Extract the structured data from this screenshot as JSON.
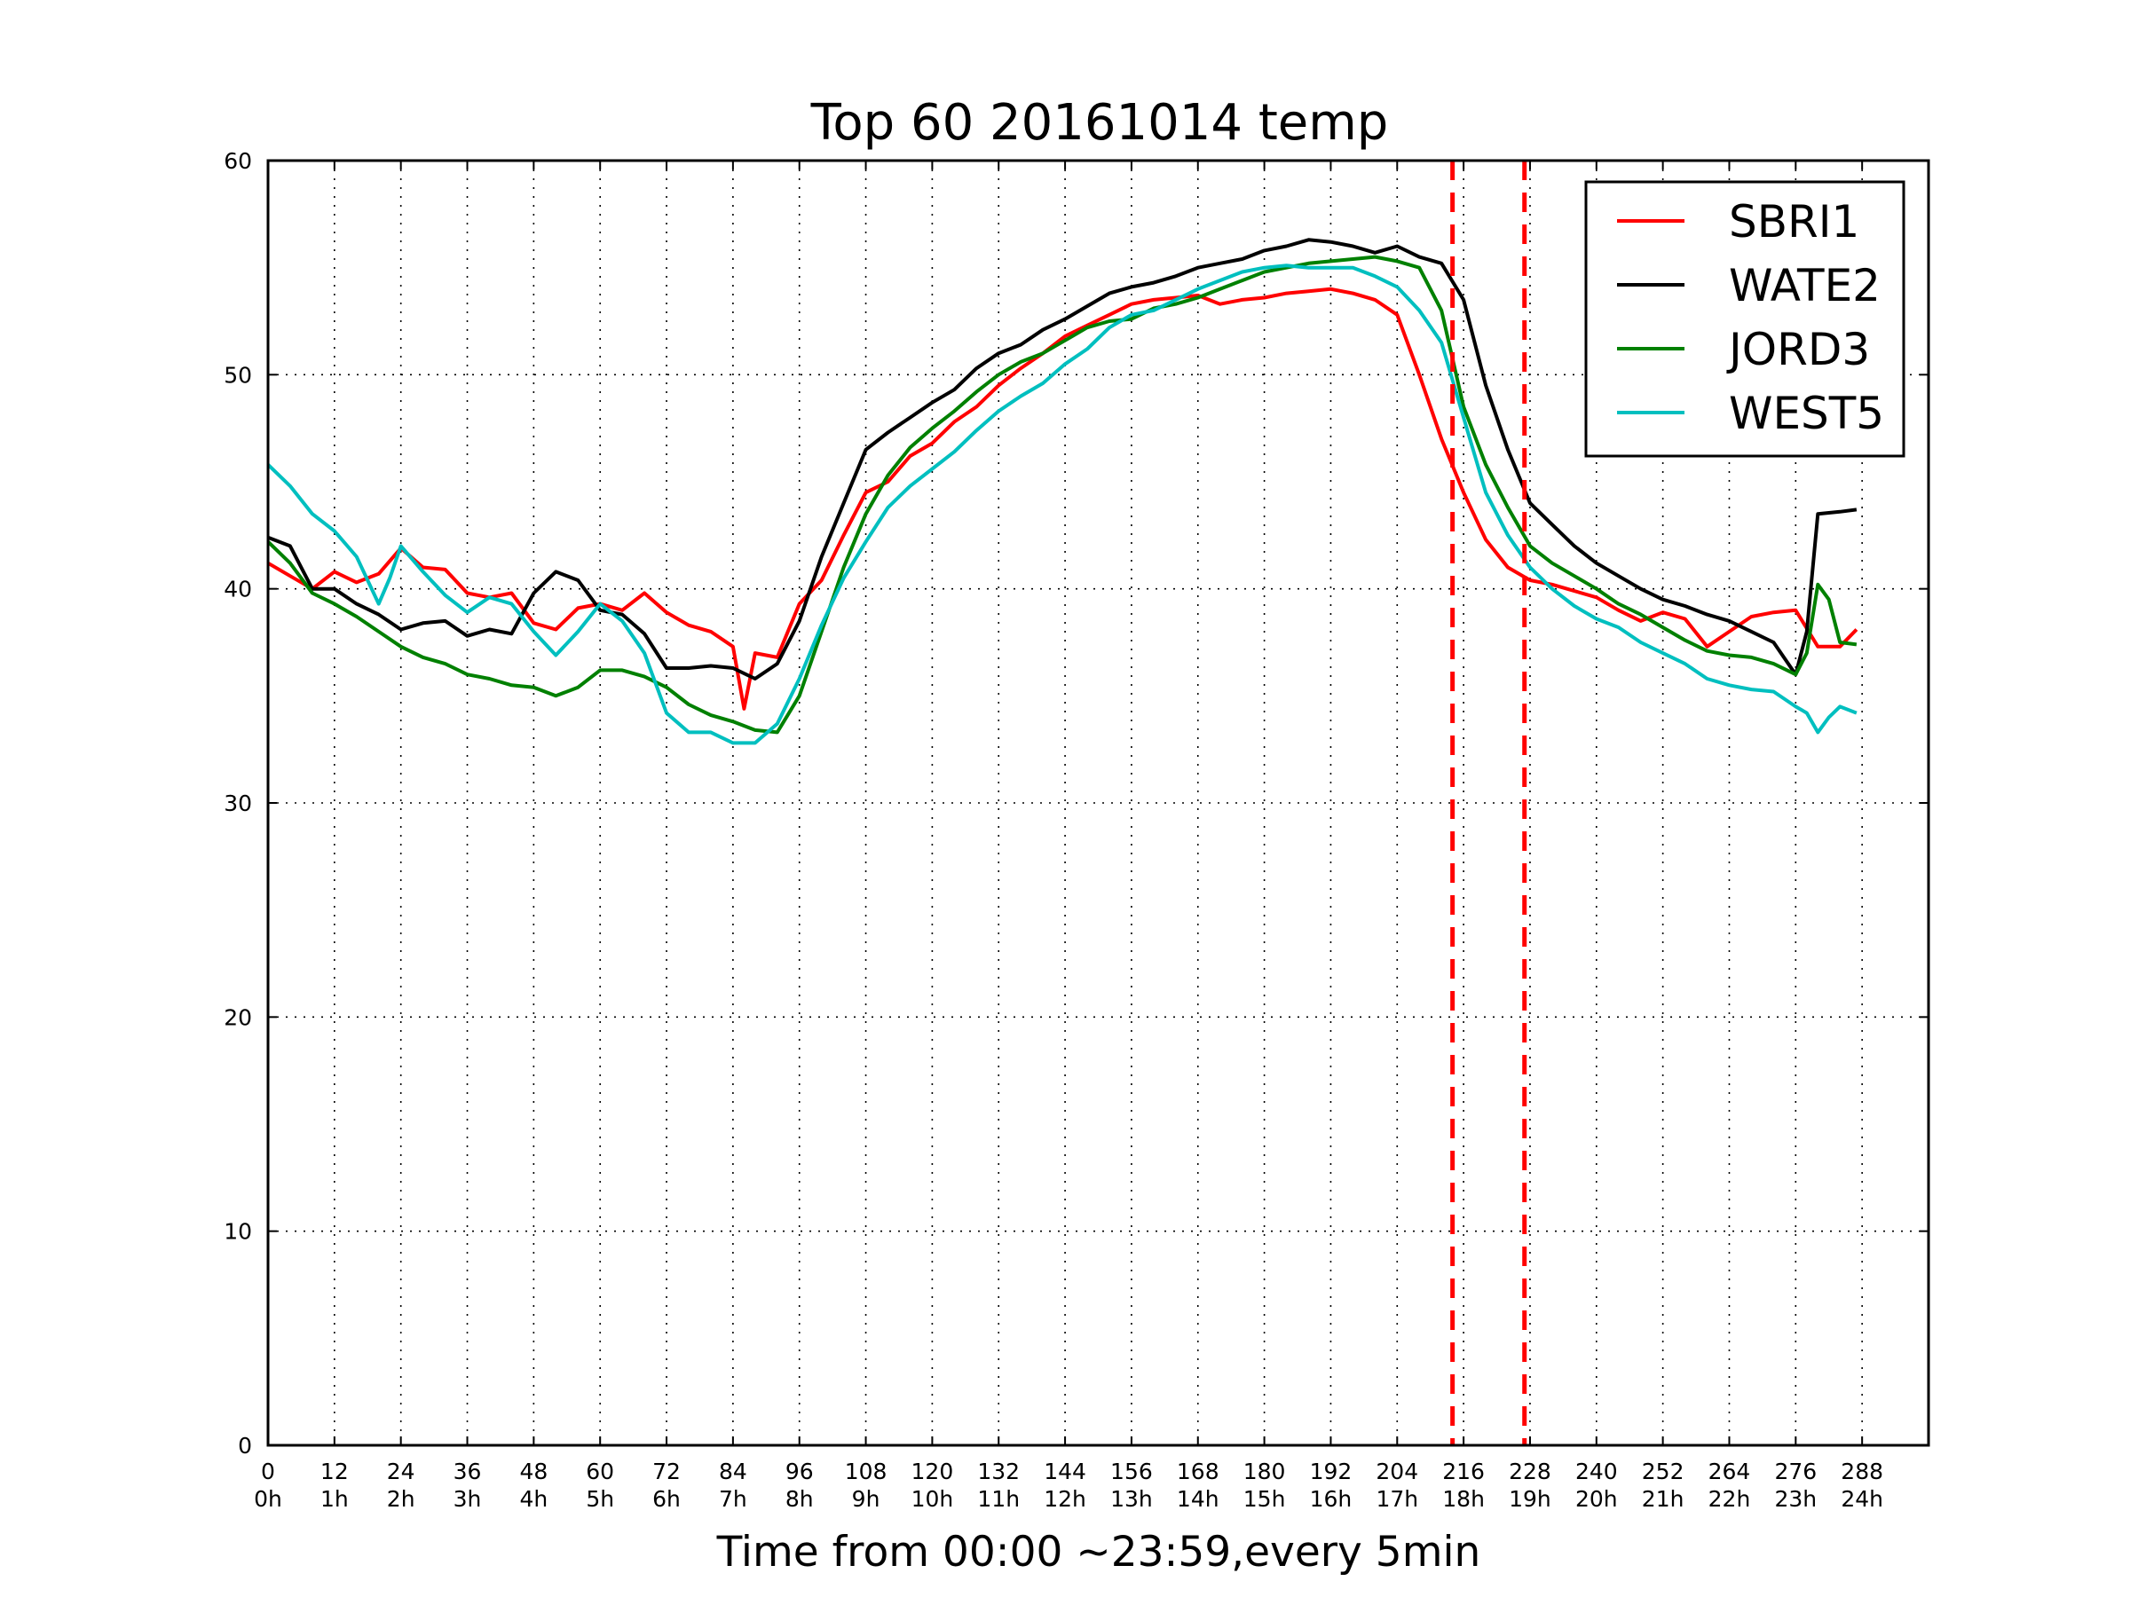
{
  "chart_data": {
    "type": "line",
    "title": "Top 60 20161014 temp",
    "xlabel": "Time from 00:00 ~23:59,every 5min",
    "ylabel": "",
    "xlim": [
      0,
      300
    ],
    "ylim": [
      0,
      60
    ],
    "grid": true,
    "legend_position": "top-right",
    "x_ticks": [
      0,
      12,
      24,
      36,
      48,
      60,
      72,
      84,
      96,
      108,
      120,
      132,
      144,
      156,
      168,
      180,
      192,
      204,
      216,
      228,
      240,
      252,
      264,
      276,
      288
    ],
    "x_tick_labels": [
      "0",
      "12",
      "24",
      "36",
      "48",
      "60",
      "72",
      "84",
      "96",
      "108",
      "120",
      "132",
      "144",
      "156",
      "168",
      "180",
      "192",
      "204",
      "216",
      "228",
      "240",
      "252",
      "264",
      "276",
      "288"
    ],
    "x_tick_sublabels": [
      "0h",
      "1h",
      "2h",
      "3h",
      "4h",
      "5h",
      "6h",
      "7h",
      "8h",
      "9h",
      "10h",
      "11h",
      "12h",
      "13h",
      "14h",
      "15h",
      "16h",
      "17h",
      "18h",
      "19h",
      "20h",
      "21h",
      "22h",
      "23h",
      "24h"
    ],
    "y_ticks": [
      0,
      10,
      20,
      30,
      40,
      50,
      60
    ],
    "y_tick_labels": [
      "0",
      "10",
      "20",
      "30",
      "40",
      "50",
      "60"
    ],
    "vlines": [
      {
        "x": 214,
        "color": "#ff0000",
        "style": "dashed"
      },
      {
        "x": 227,
        "color": "#ff0000",
        "style": "dashed"
      }
    ],
    "series": [
      {
        "name": "SBRI1",
        "color": "#ff0000",
        "x": [
          0,
          4,
          8,
          12,
          16,
          20,
          24,
          28,
          32,
          36,
          40,
          44,
          48,
          52,
          56,
          60,
          64,
          68,
          72,
          76,
          80,
          84,
          86,
          88,
          92,
          96,
          100,
          104,
          108,
          112,
          116,
          120,
          124,
          128,
          132,
          136,
          140,
          144,
          148,
          152,
          156,
          160,
          164,
          168,
          172,
          176,
          180,
          184,
          188,
          192,
          196,
          200,
          204,
          208,
          212,
          216,
          220,
          224,
          228,
          232,
          236,
          240,
          244,
          248,
          252,
          256,
          260,
          264,
          268,
          272,
          276,
          280,
          284,
          287
        ],
        "y": [
          41.2,
          40.6,
          40.0,
          40.8,
          40.3,
          40.7,
          41.9,
          41.0,
          40.9,
          39.8,
          39.6,
          39.8,
          38.4,
          38.1,
          39.1,
          39.3,
          39.0,
          39.8,
          38.9,
          38.3,
          38.0,
          37.3,
          34.4,
          37.0,
          36.8,
          39.3,
          40.4,
          42.5,
          44.5,
          45.0,
          46.2,
          46.8,
          47.8,
          48.5,
          49.5,
          50.3,
          51.0,
          51.8,
          52.3,
          52.8,
          53.3,
          53.5,
          53.6,
          53.7,
          53.3,
          53.5,
          53.6,
          53.8,
          53.9,
          54.0,
          53.8,
          53.5,
          52.8,
          50.0,
          47.0,
          44.5,
          42.3,
          41.0,
          40.4,
          40.2,
          39.9,
          39.6,
          39.0,
          38.5,
          38.9,
          38.6,
          37.3,
          38.0,
          38.7,
          38.9,
          39.0,
          37.3,
          37.3,
          38.1
        ]
      },
      {
        "name": "WATE2",
        "color": "#000000",
        "x": [
          0,
          4,
          8,
          12,
          16,
          20,
          24,
          28,
          32,
          36,
          40,
          44,
          48,
          52,
          56,
          60,
          64,
          68,
          72,
          76,
          80,
          84,
          88,
          92,
          96,
          100,
          104,
          108,
          112,
          116,
          120,
          124,
          128,
          132,
          136,
          140,
          144,
          148,
          152,
          156,
          160,
          164,
          168,
          172,
          176,
          180,
          184,
          188,
          192,
          196,
          200,
          204,
          208,
          212,
          216,
          220,
          224,
          228,
          232,
          236,
          240,
          244,
          248,
          252,
          256,
          260,
          264,
          268,
          272,
          276,
          278,
          280,
          284,
          287
        ],
        "y": [
          42.4,
          42.0,
          40.0,
          40.0,
          39.3,
          38.8,
          38.1,
          38.4,
          38.5,
          37.8,
          38.1,
          37.9,
          39.8,
          40.8,
          40.4,
          39.0,
          38.8,
          37.9,
          36.3,
          36.3,
          36.4,
          36.3,
          35.8,
          36.5,
          38.5,
          41.5,
          44.0,
          46.5,
          47.3,
          48.0,
          48.7,
          49.3,
          50.3,
          51.0,
          51.4,
          52.1,
          52.6,
          53.2,
          53.8,
          54.1,
          54.3,
          54.6,
          55.0,
          55.2,
          55.4,
          55.8,
          56.0,
          56.3,
          56.2,
          56.0,
          55.7,
          56.0,
          55.5,
          55.2,
          53.5,
          49.5,
          46.5,
          44.0,
          43.0,
          42.0,
          41.2,
          40.6,
          40.0,
          39.5,
          39.2,
          38.8,
          38.5,
          38.0,
          37.5,
          36.0,
          38.0,
          43.5,
          43.6,
          43.7
        ]
      },
      {
        "name": "JORD3",
        "color": "#008000",
        "x": [
          0,
          4,
          8,
          12,
          16,
          20,
          24,
          28,
          32,
          36,
          40,
          44,
          48,
          52,
          56,
          60,
          64,
          68,
          72,
          76,
          80,
          84,
          88,
          92,
          96,
          100,
          104,
          108,
          112,
          116,
          120,
          124,
          128,
          132,
          136,
          140,
          144,
          148,
          152,
          156,
          160,
          164,
          168,
          172,
          176,
          180,
          184,
          188,
          192,
          196,
          200,
          204,
          208,
          212,
          216,
          220,
          224,
          228,
          232,
          236,
          240,
          244,
          248,
          252,
          256,
          260,
          264,
          268,
          272,
          276,
          278,
          280,
          282,
          284,
          287
        ],
        "y": [
          42.2,
          41.2,
          39.8,
          39.3,
          38.7,
          38.0,
          37.3,
          36.8,
          36.5,
          36.0,
          35.8,
          35.5,
          35.4,
          35.0,
          35.4,
          36.2,
          36.2,
          35.9,
          35.4,
          34.6,
          34.1,
          33.8,
          33.4,
          33.3,
          35.0,
          38.0,
          41.0,
          43.5,
          45.3,
          46.6,
          47.5,
          48.3,
          49.2,
          50.0,
          50.6,
          51.0,
          51.6,
          52.2,
          52.5,
          52.6,
          53.1,
          53.3,
          53.6,
          54.0,
          54.4,
          54.8,
          55.0,
          55.2,
          55.3,
          55.4,
          55.5,
          55.3,
          55.0,
          53.0,
          48.5,
          45.8,
          43.8,
          42.0,
          41.2,
          40.6,
          40.0,
          39.3,
          38.8,
          38.2,
          37.6,
          37.1,
          36.9,
          36.8,
          36.5,
          36.0,
          37.0,
          40.2,
          39.5,
          37.5,
          37.4
        ]
      },
      {
        "name": "WEST5",
        "color": "#00bfbf",
        "x": [
          0,
          4,
          8,
          12,
          16,
          20,
          22,
          24,
          28,
          32,
          36,
          40,
          44,
          48,
          52,
          56,
          60,
          64,
          68,
          72,
          76,
          80,
          84,
          88,
          92,
          96,
          100,
          104,
          108,
          112,
          116,
          120,
          124,
          128,
          132,
          136,
          140,
          144,
          148,
          152,
          156,
          160,
          164,
          168,
          172,
          176,
          180,
          184,
          188,
          192,
          196,
          200,
          204,
          208,
          212,
          216,
          220,
          224,
          228,
          232,
          236,
          240,
          244,
          248,
          252,
          256,
          260,
          264,
          268,
          272,
          276,
          278,
          280,
          282,
          284,
          287
        ],
        "y": [
          45.8,
          44.8,
          43.5,
          42.7,
          41.5,
          39.3,
          40.5,
          42.0,
          40.8,
          39.7,
          38.9,
          39.6,
          39.3,
          38.0,
          36.9,
          38.0,
          39.3,
          38.5,
          37.0,
          34.2,
          33.3,
          33.3,
          32.8,
          32.8,
          33.7,
          35.8,
          38.3,
          40.5,
          42.2,
          43.8,
          44.8,
          45.6,
          46.4,
          47.4,
          48.3,
          49.0,
          49.6,
          50.5,
          51.2,
          52.2,
          52.8,
          53.0,
          53.5,
          54.0,
          54.4,
          54.8,
          55.0,
          55.1,
          55.0,
          55.0,
          55.0,
          54.6,
          54.1,
          53.0,
          51.5,
          48.0,
          44.5,
          42.5,
          41.0,
          40.0,
          39.2,
          38.6,
          38.2,
          37.5,
          37.0,
          36.5,
          35.8,
          35.5,
          35.3,
          35.2,
          34.5,
          34.2,
          33.3,
          34.0,
          34.5,
          34.2
        ]
      }
    ]
  }
}
